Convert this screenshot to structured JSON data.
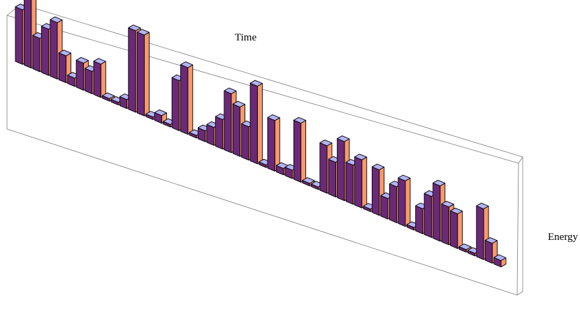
{
  "chart_data": {
    "type": "bar",
    "style": "3d-bar",
    "title": "",
    "xlabel": "Time",
    "ylabel": "Energy",
    "values": [
      0.85,
      1.25,
      0.52,
      0.72,
      0.88,
      0.42,
      0.13,
      0.42,
      0.35,
      0.52,
      0.0,
      0.0,
      0.14,
      1.27,
      1.26,
      0.0,
      0.12,
      0.0,
      0.78,
      1.04,
      0.0,
      0.17,
      0.28,
      0.46,
      0.92,
      0.77,
      0.52,
      1.21,
      0.0,
      0.79,
      0.1,
      0.13,
      0.92,
      0.0,
      0.0,
      0.74,
      0.54,
      0.92,
      0.61,
      0.75,
      0.0,
      0.71,
      0.32,
      0.56,
      0.71,
      0.0,
      0.39,
      0.64,
      0.86,
      0.59,
      0.54,
      0.0,
      0.0,
      0.79,
      0.31,
      0.1
    ],
    "colors": {
      "front": "#6a2a78",
      "side": "#f9996a",
      "top": "#b4b4f4",
      "edge": "#000000",
      "box": "#7a7a7a"
    }
  }
}
